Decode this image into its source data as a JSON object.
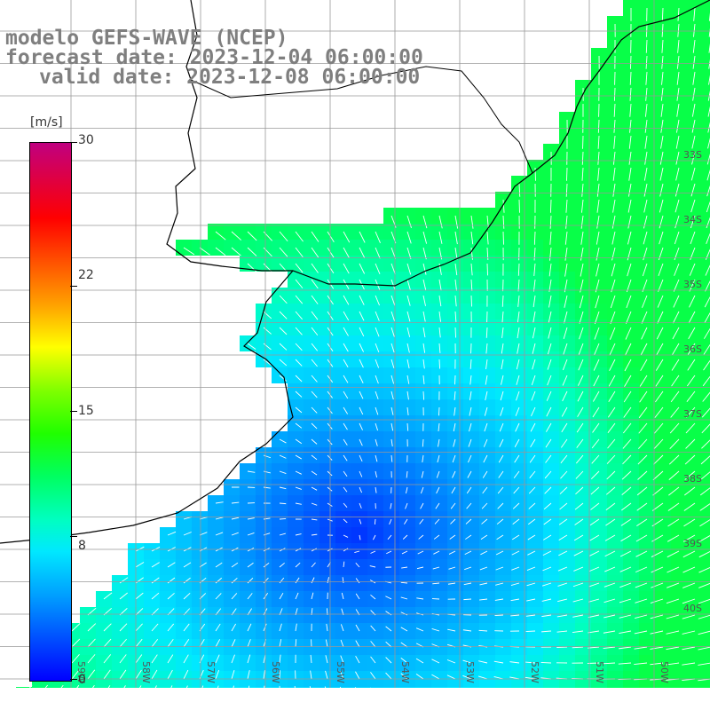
{
  "title": {
    "line1": "modelo GEFS-WAVE (NCEP)",
    "line2": "forecast date: 2023-12-04 06:00:00",
    "line3": "valid date: 2023-12-08 06:00:00"
  },
  "legend": {
    "unit": "[m/s]",
    "ticks": [
      "30",
      "22",
      "15",
      "8",
      "0"
    ],
    "tick_values": [
      30,
      22,
      15,
      8,
      0
    ],
    "range": [
      0,
      30
    ]
  },
  "map_data": {
    "variable": "wind speed",
    "lat_labels": [
      "33S",
      "34S",
      "35S",
      "36S",
      "37S",
      "38S",
      "39S",
      "40S"
    ],
    "lon_labels": [
      "59W",
      "58W",
      "57W",
      "56W",
      "55W",
      "54W",
      "53W",
      "52W",
      "51W",
      "50W"
    ],
    "colors": {
      "land": "#ffffff",
      "coast": "#000000",
      "grid": "#999999"
    }
  }
}
